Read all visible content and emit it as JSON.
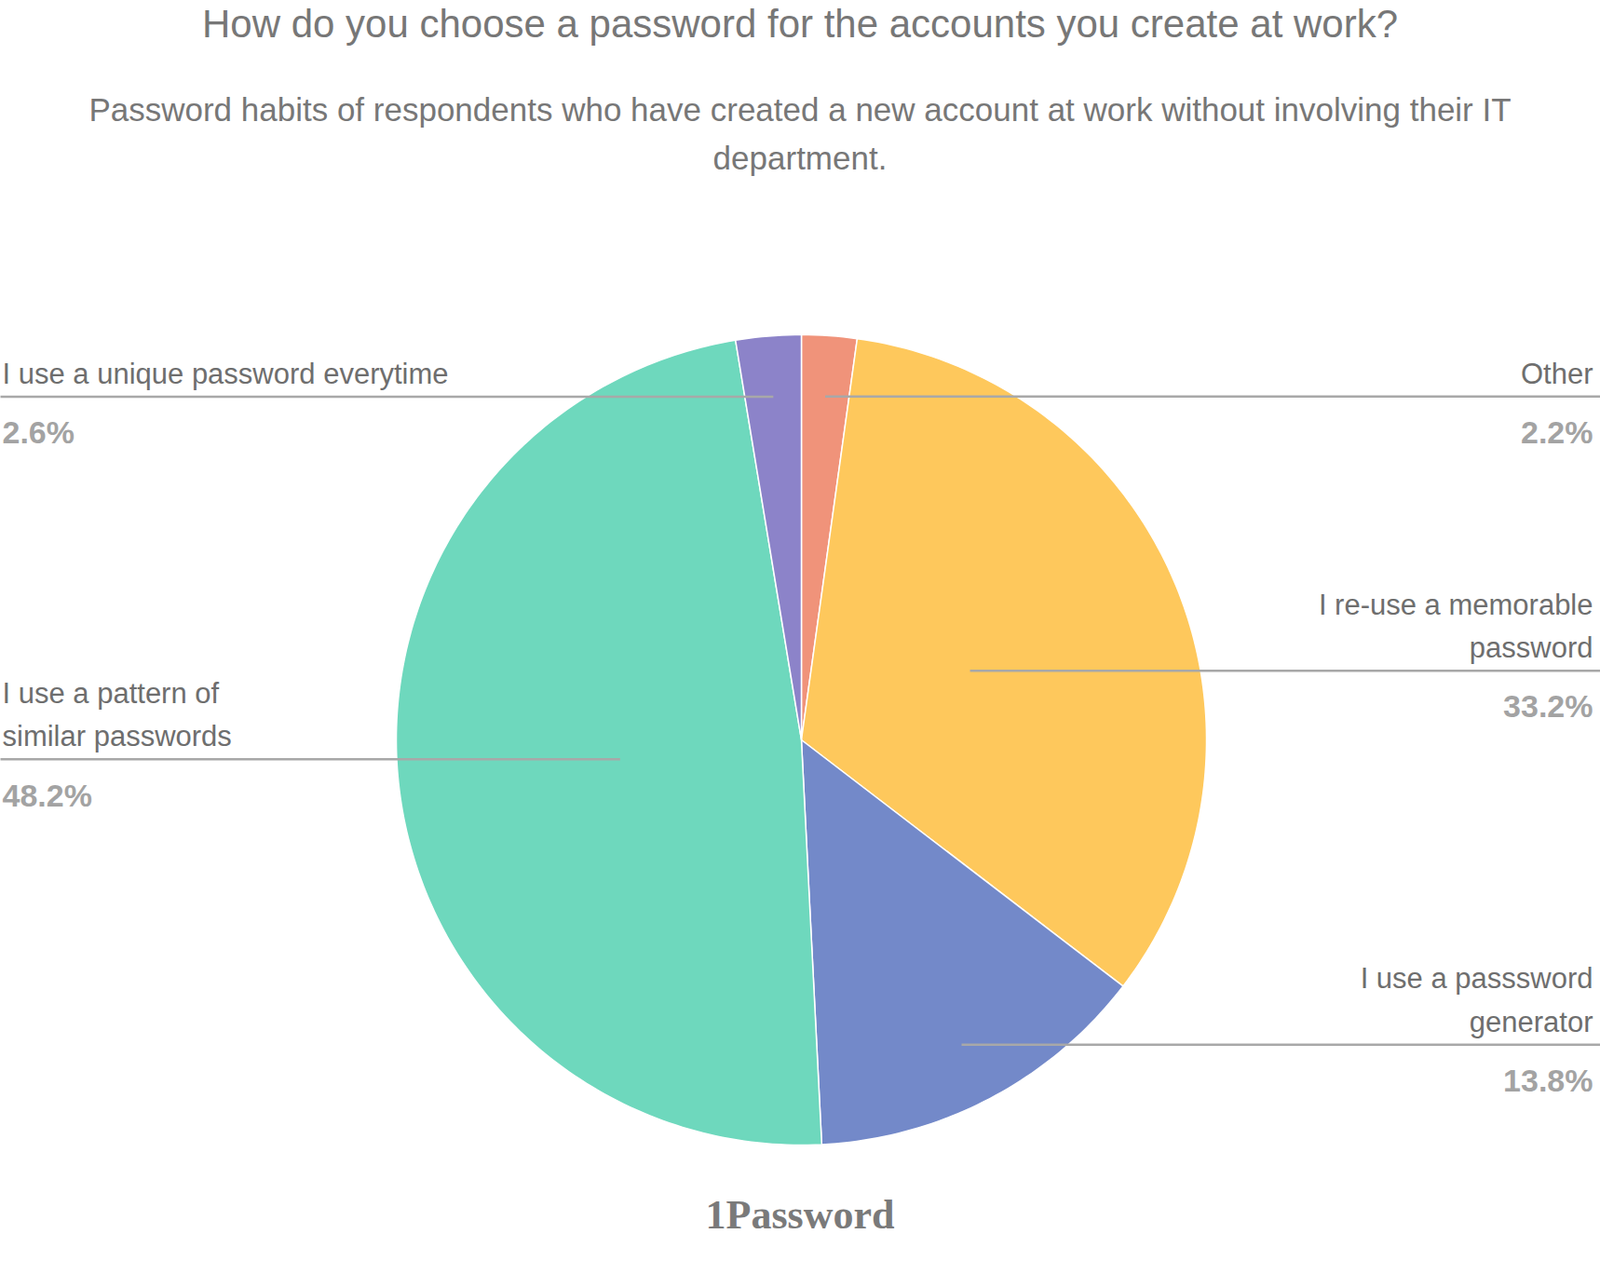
{
  "chart_data": {
    "type": "pie",
    "title": "How do you choose a password for the accounts you create at work?",
    "subtitle": "Password habits of respondents who have created a new account at work without involving their IT department.",
    "categories": [
      "Other",
      "I re-use a memorable\npassword",
      "I use a passsword\ngenerator",
      "I use a pattern of\nsimilar passwords",
      "I use a unique password everytime"
    ],
    "values": [
      2.2,
      33.2,
      13.8,
      48.2,
      2.6
    ],
    "value_labels": [
      "2.2%",
      "33.2%",
      "13.8%",
      "48.2%",
      "2.6%"
    ],
    "colors": [
      "#f0937a",
      "#fec85c",
      "#7389c9",
      "#6ed8bd",
      "#8c83c9"
    ],
    "data_labels": true,
    "source": "1Password"
  }
}
